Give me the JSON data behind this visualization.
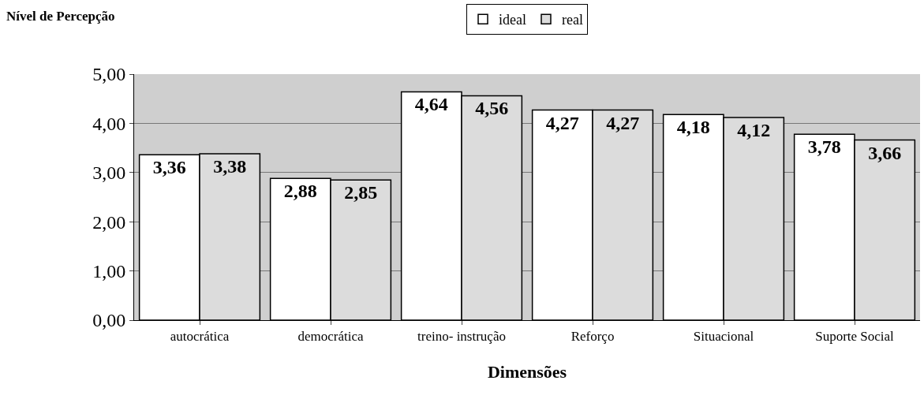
{
  "chart_data": {
    "type": "bar",
    "ylabel": "Nível de Percepção",
    "xlabel": "Dimensões",
    "categories": [
      "autocrática",
      "democrática",
      "treino- instrução",
      "Reforço",
      "Situacional",
      "Suporte Social"
    ],
    "series": [
      {
        "name": "ideal",
        "color": "#ffffff",
        "values": [
          3.36,
          2.88,
          4.64,
          4.27,
          4.18,
          3.78
        ],
        "value_labels": [
          "3,36",
          "2,88",
          "4,64",
          "4,27",
          "4,18",
          "3,78"
        ]
      },
      {
        "name": "real",
        "color": "#dcdcdc",
        "values": [
          3.38,
          2.85,
          4.56,
          4.27,
          4.12,
          3.66
        ],
        "value_labels": [
          "3,38",
          "2,85",
          "4,56",
          "4,27",
          "4,12",
          "3,66"
        ]
      }
    ],
    "ylim": [
      0,
      5
    ],
    "yticks": [
      {
        "value": 0,
        "label": "0,00"
      },
      {
        "value": 1,
        "label": "1,00"
      },
      {
        "value": 2,
        "label": "2,00"
      },
      {
        "value": 3,
        "label": "3,00"
      },
      {
        "value": 4,
        "label": "4,00"
      },
      {
        "value": 5,
        "label": "5,00"
      }
    ],
    "grid": "y",
    "legend": "top"
  }
}
